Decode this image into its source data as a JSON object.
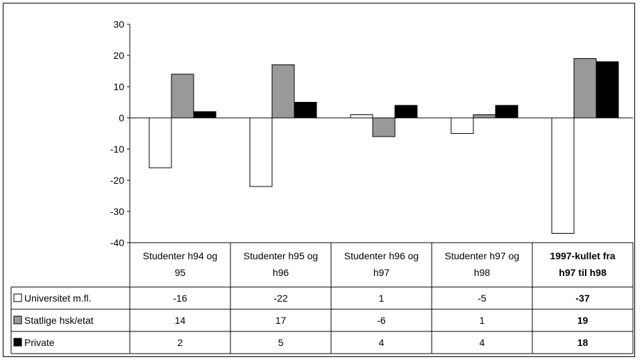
{
  "chart_data": {
    "type": "bar",
    "title": "",
    "xlabel": "",
    "ylabel": "",
    "ylim": [
      -40,
      30
    ],
    "yticks": [
      "30",
      "20",
      "10",
      "0",
      "-10",
      "-20",
      "-30",
      "-40"
    ],
    "categories": [
      [
        "Studenter h94 og",
        "95"
      ],
      [
        "Studenter h95 og",
        "h96"
      ],
      [
        "Studenter h96 og",
        "h97"
      ],
      [
        "Studenter h97 og",
        "h98"
      ],
      [
        "1997-kullet fra",
        "h97 til h98"
      ]
    ],
    "bold_category_index": 4,
    "legend_placement": "data-table",
    "grid": false,
    "series": [
      {
        "name": "Universitet m.fl.",
        "color": "#ffffff",
        "values": [
          -16,
          -22,
          1,
          -5,
          -37
        ],
        "labels": [
          "-16",
          "-22",
          "1",
          "-5",
          "-37"
        ]
      },
      {
        "name": "Statlige hsk/etat",
        "color": "#999999",
        "values": [
          14,
          17,
          -6,
          1,
          19
        ],
        "labels": [
          "14",
          "17",
          "-6",
          "1",
          "19"
        ]
      },
      {
        "name": "Private",
        "color": "#000000",
        "values": [
          2,
          5,
          4,
          4,
          18
        ],
        "labels": [
          "2",
          "5",
          "4",
          "4",
          "18"
        ]
      }
    ]
  }
}
